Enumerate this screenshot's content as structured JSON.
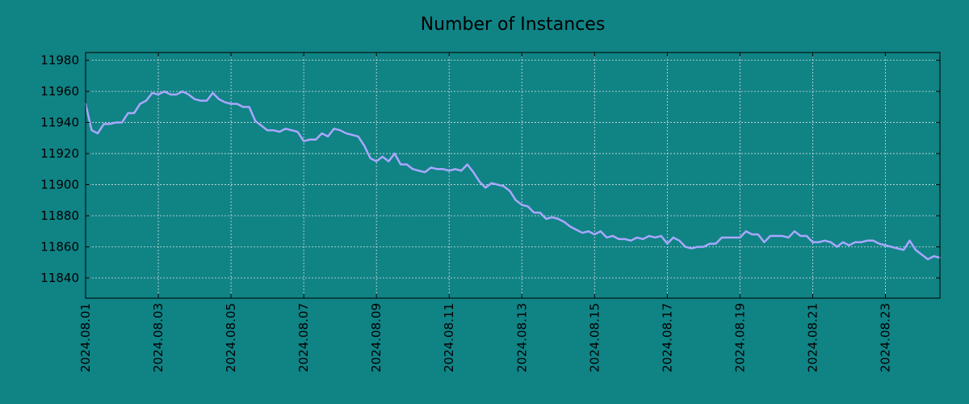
{
  "chart_data": {
    "type": "line",
    "title": "Number of Instances",
    "xlabel": "",
    "ylabel": "",
    "x_start": "2024.08.01",
    "x_end": "2024.08.24 12:00",
    "xlim": [
      "2024.08.01",
      "2024.08.24 12:00"
    ],
    "ylim": [
      11827,
      11985
    ],
    "x_ticks": [
      "2024.08.01",
      "2024.08.03",
      "2024.08.05",
      "2024.08.07",
      "2024.08.09",
      "2024.08.11",
      "2024.08.13",
      "2024.08.15",
      "2024.08.17",
      "2024.08.19",
      "2024.08.21",
      "2024.08.23"
    ],
    "y_ticks": [
      "11840",
      "11860",
      "11880",
      "11900",
      "11920",
      "11940",
      "11960",
      "11980"
    ],
    "grid": true,
    "colors": {
      "background": "#108385",
      "line": "#a9a7ff",
      "grid": "#d6e0e0",
      "axes": "#000000"
    },
    "series": [
      {
        "values": [
          11952,
          11935,
          11933,
          11939,
          11939,
          11940,
          11940,
          11946,
          11946,
          11952,
          11954,
          11959,
          11958,
          11960,
          11958,
          11958,
          11960,
          11958,
          11955,
          11954,
          11954,
          11959,
          11955,
          11953,
          11952,
          11952,
          11950,
          11950,
          11941,
          11938,
          11935,
          11935,
          11934,
          11936,
          11935,
          11934,
          11928,
          11929,
          11929,
          11933,
          11931,
          11936,
          11935,
          11933,
          11932,
          11931,
          11925,
          11917,
          11915,
          11918,
          11915,
          11920,
          11913,
          11913,
          11910,
          11909,
          11908,
          11911,
          11910,
          11910,
          11909,
          11910,
          11909,
          11913,
          11908,
          11902,
          11898,
          11901,
          11900,
          11899,
          11896,
          11890,
          11887,
          11886,
          11882,
          11882,
          11878,
          11879,
          11878,
          11876,
          11873,
          11871,
          11869,
          11870,
          11868,
          11870,
          11866,
          11867,
          11865,
          11865,
          11864,
          11866,
          11865,
          11867,
          11866,
          11867,
          11862,
          11866,
          11864,
          11860,
          11859,
          11860,
          11860,
          11862,
          11862,
          11866,
          11866,
          11866,
          11866,
          11870,
          11868,
          11868,
          11863,
          11867,
          11867,
          11867,
          11866,
          11870,
          11867,
          11867,
          11863,
          11863,
          11864,
          11863,
          11860,
          11863,
          11861,
          11863,
          11863,
          11864,
          11864,
          11862,
          11861,
          11860,
          11859,
          11858,
          11864,
          11858,
          11855,
          11852,
          11854,
          11853
        ]
      }
    ]
  }
}
